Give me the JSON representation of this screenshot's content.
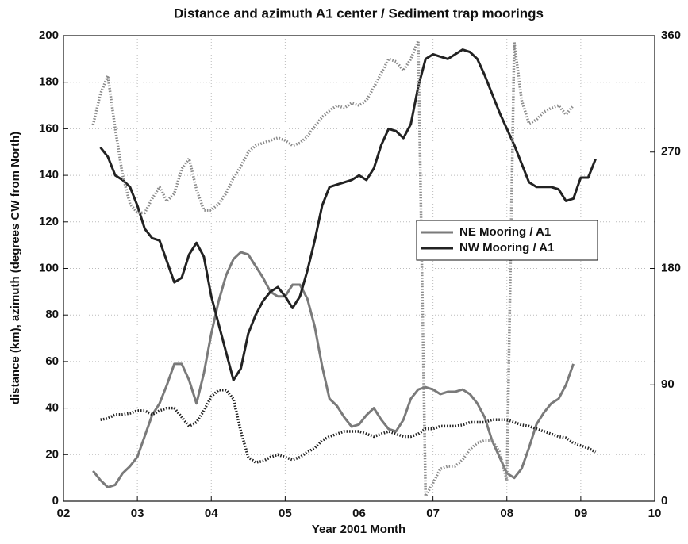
{
  "chart_data": {
    "type": "line",
    "title": "Distance and azimuth A1 center / Sediment trap moorings",
    "x_label": "Year 2001 Month",
    "y_label": "distance (km), azimuth (degrees CW from North)",
    "x": [
      2.4,
      2.5,
      2.6,
      2.7,
      2.8,
      2.9,
      3.0,
      3.1,
      3.2,
      3.3,
      3.4,
      3.5,
      3.6,
      3.7,
      3.8,
      3.9,
      4.0,
      4.1,
      4.2,
      4.3,
      4.4,
      4.5,
      4.6,
      4.7,
      4.8,
      4.9,
      5.0,
      5.1,
      5.2,
      5.3,
      5.4,
      5.5,
      5.6,
      5.7,
      5.8,
      5.9,
      6.0,
      6.1,
      6.2,
      6.3,
      6.4,
      6.5,
      6.6,
      6.7,
      6.8,
      6.9,
      7.0,
      7.1,
      7.2,
      7.3,
      7.4,
      7.5,
      7.6,
      7.7,
      7.8,
      7.9,
      8.0,
      8.1,
      8.2,
      8.3,
      8.4,
      8.5,
      8.6,
      8.7,
      8.8,
      8.9,
      9.0,
      9.1,
      9.2
    ],
    "series": [
      {
        "name": "NE Mooring / A1",
        "color": "#7a7a7a",
        "style": "solid",
        "values": [
          13,
          9,
          6,
          7,
          12,
          15,
          19,
          28,
          37,
          42,
          50,
          59,
          59,
          52,
          42,
          55,
          72,
          86,
          97,
          104,
          107,
          106,
          101,
          96,
          90,
          88,
          88,
          93,
          93,
          87,
          75,
          58,
          44,
          41,
          36,
          32,
          33,
          37,
          40,
          35,
          31,
          30,
          35,
          44,
          48,
          49,
          48,
          46,
          47,
          47,
          48,
          46,
          42,
          36,
          26,
          19,
          12,
          10,
          14,
          23,
          33,
          38,
          42,
          44,
          50,
          59,
          null,
          null,
          null
        ]
      },
      {
        "name": "NW Mooring / A1",
        "color": "#222222",
        "style": "solid",
        "values": [
          null,
          152,
          148,
          140,
          138,
          135,
          127,
          117,
          113,
          112,
          103,
          94,
          96,
          106,
          111,
          105,
          88,
          76,
          64,
          52,
          57,
          72,
          80,
          86,
          90,
          92,
          88,
          83,
          88,
          99,
          112,
          127,
          135,
          136,
          137,
          138,
          140,
          138,
          143,
          153,
          160,
          159,
          156,
          162,
          178,
          190,
          192,
          191,
          190,
          192,
          194,
          193,
          190,
          183,
          175,
          167,
          160,
          153,
          145,
          137,
          135,
          135,
          135,
          134,
          129,
          130,
          139,
          139,
          147
        ]
      },
      {
        "color": "#8a8a8a",
        "style": "dotted",
        "axis": "y2",
        "values": [
          291,
          315,
          329,
          288,
          252,
          230,
          223,
          223,
          234,
          243,
          232,
          238,
          257,
          265,
          241,
          225,
          225,
          230,
          238,
          250,
          259,
          270,
          275,
          277,
          279,
          281,
          279,
          275,
          277,
          282,
          290,
          297,
          302,
          306,
          304,
          308,
          306,
          310,
          320,
          331,
          342,
          340,
          333,
          342,
          356,
          4,
          14,
          25,
          27,
          27,
          32,
          40,
          45,
          47,
          47,
          38,
          16,
          355,
          310,
          292,
          295,
          301,
          304,
          306,
          299,
          306,
          null,
          null,
          null
        ]
      },
      {
        "color": "#222222",
        "style": "dotted",
        "axis": "y2",
        "values": [
          null,
          63,
          64,
          67,
          67,
          68,
          70,
          70,
          67,
          70,
          72,
          72,
          65,
          58,
          61,
          70,
          81,
          86,
          86,
          79,
          54,
          34,
          30,
          31,
          34,
          36,
          34,
          32,
          34,
          38,
          41,
          47,
          50,
          52,
          54,
          54,
          54,
          52,
          50,
          52,
          54,
          52,
          50,
          50,
          52,
          56,
          56,
          58,
          58,
          58,
          59,
          61,
          61,
          61,
          63,
          63,
          63,
          61,
          59,
          58,
          56,
          54,
          52,
          50,
          49,
          45,
          43,
          41,
          38
        ]
      }
    ],
    "xlim": [
      2,
      10
    ],
    "xticks": [
      {
        "value": 2,
        "label": "02"
      },
      {
        "value": 3,
        "label": "03"
      },
      {
        "value": 4,
        "label": "04"
      },
      {
        "value": 5,
        "label": "05"
      },
      {
        "value": 6,
        "label": "06"
      },
      {
        "value": 7,
        "label": "07"
      },
      {
        "value": 8,
        "label": "08"
      },
      {
        "value": 9,
        "label": "09"
      },
      10
    ],
    "ylim": [
      0,
      200
    ],
    "yticks": [
      0,
      20,
      40,
      60,
      80,
      100,
      120,
      140,
      160,
      180,
      200
    ],
    "y2lim": [
      0,
      360
    ],
    "y2ticks": [
      0,
      90,
      180,
      270,
      360
    ],
    "grid": true,
    "legend": "center right"
  }
}
